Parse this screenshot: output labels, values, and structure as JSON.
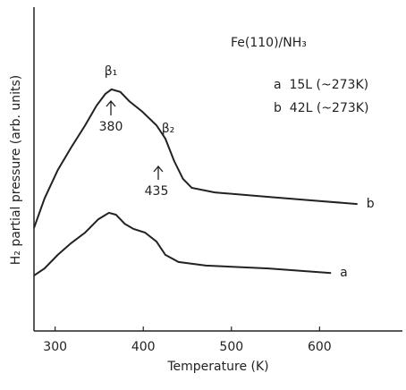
{
  "chart_data": {
    "type": "line",
    "title": "Fe(110)/NH₃",
    "legend_lines": [
      "a  15L (~273K)",
      "b  42L (~273K)"
    ],
    "annotations": [
      "β₁",
      "β₂",
      "380",
      "435"
    ],
    "x_label": "Temperature (K)",
    "y_label": "H₂ partial pressure (arb. units)",
    "xlim": [
      276,
      694
    ],
    "ylim": [
      0,
      100
    ],
    "xticks": [
      300,
      400,
      500,
      600
    ],
    "series": [
      {
        "name": "b",
        "color": "#222222",
        "x": [
          276,
          288,
          303,
          318,
          334,
          347,
          357,
          364,
          374,
          384,
          399,
          415,
          425,
          435,
          445,
          455,
          481,
          542,
          592,
          643
        ],
        "values": [
          31.8,
          40.9,
          49.7,
          56.6,
          63.5,
          69.6,
          73.2,
          74.6,
          73.8,
          71.0,
          67.7,
          63.5,
          59.4,
          52.5,
          47.0,
          44.2,
          42.8,
          41.4,
          40.3,
          39.2
        ]
      },
      {
        "name": "a",
        "color": "#222222",
        "x": [
          276,
          288,
          303,
          318,
          334,
          349,
          361,
          369,
          379,
          389,
          402,
          415,
          425,
          440,
          471,
          542,
          613
        ],
        "values": [
          17.1,
          19.3,
          23.5,
          27.1,
          30.4,
          34.5,
          36.5,
          35.9,
          33.1,
          31.5,
          30.4,
          27.6,
          23.5,
          21.3,
          20.2,
          19.3,
          17.9
        ]
      }
    ]
  }
}
